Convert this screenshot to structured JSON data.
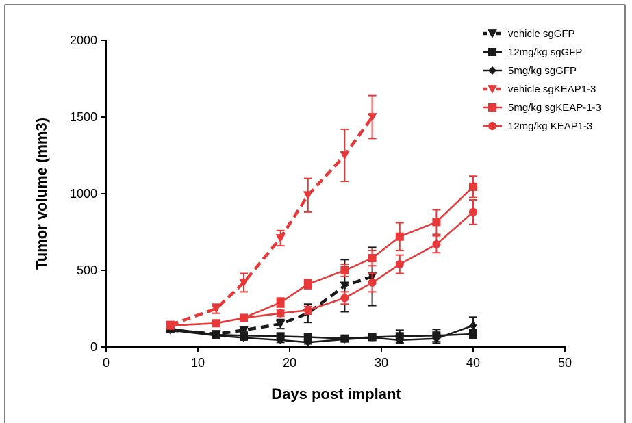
{
  "chart_data": {
    "type": "line",
    "xlabel": "Days post implant",
    "ylabel": "Tumor volume (mm3)",
    "xlim": [
      0,
      50
    ],
    "ylim": [
      0,
      2000
    ],
    "xticks": [
      0,
      10,
      20,
      30,
      40,
      50
    ],
    "yticks": [
      0,
      500,
      1000,
      1500,
      2000
    ],
    "grid": false,
    "legend_position": "top-right",
    "series": [
      {
        "name": "vehicle sgGFP",
        "color": "#1a1a1a",
        "dashed": true,
        "marker": "triangle-down",
        "x": [
          7,
          12,
          15,
          19,
          22,
          26,
          29
        ],
        "y": [
          110,
          85,
          110,
          150,
          220,
          400,
          460
        ],
        "err": [
          15,
          15,
          20,
          30,
          60,
          170,
          190
        ]
      },
      {
        "name": "12mg/kg sgGFP",
        "color": "#1a1a1a",
        "dashed": false,
        "marker": "square",
        "x": [
          7,
          12,
          15,
          19,
          22,
          26,
          29,
          32,
          36,
          40
        ],
        "y": [
          120,
          80,
          75,
          70,
          65,
          55,
          65,
          70,
          75,
          85
        ],
        "err": [
          10,
          15,
          15,
          20,
          20,
          15,
          15,
          40,
          40,
          30
        ]
      },
      {
        "name": "5mg/kg sgGFP",
        "color": "#1a1a1a",
        "dashed": false,
        "marker": "diamond",
        "x": [
          7,
          12,
          15,
          19,
          22,
          26,
          29,
          32,
          36,
          40
        ],
        "y": [
          110,
          75,
          60,
          45,
          30,
          50,
          60,
          45,
          55,
          140
        ],
        "err": [
          10,
          15,
          15,
          15,
          10,
          10,
          15,
          20,
          30,
          55
        ]
      },
      {
        "name": "vehicle sgKEAP1-3",
        "color": "#e8393a",
        "dashed": true,
        "marker": "triangle-down",
        "x": [
          7,
          12,
          15,
          19,
          22,
          26,
          29
        ],
        "y": [
          145,
          250,
          420,
          710,
          990,
          1250,
          1500
        ],
        "err": [
          20,
          30,
          60,
          50,
          110,
          170,
          140
        ]
      },
      {
        "name": "5mg/kg sgKEAP-1-3",
        "color": "#e8393a",
        "dashed": false,
        "marker": "square",
        "x": [
          7,
          12,
          15,
          19,
          22,
          26,
          29,
          32,
          36,
          40
        ],
        "y": [
          140,
          155,
          190,
          290,
          410,
          500,
          580,
          720,
          815,
          1045
        ],
        "err": [
          10,
          15,
          20,
          30,
          30,
          40,
          50,
          90,
          80,
          70
        ]
      },
      {
        "name": "12mg/kg KEAP1-3",
        "color": "#e8393a",
        "dashed": false,
        "marker": "circle",
        "x": [
          7,
          12,
          15,
          19,
          22,
          26,
          29,
          32,
          36,
          40
        ],
        "y": [
          140,
          155,
          190,
          220,
          240,
          320,
          420,
          540,
          670,
          880
        ],
        "err": [
          10,
          15,
          15,
          20,
          25,
          40,
          60,
          60,
          55,
          80
        ]
      }
    ]
  }
}
